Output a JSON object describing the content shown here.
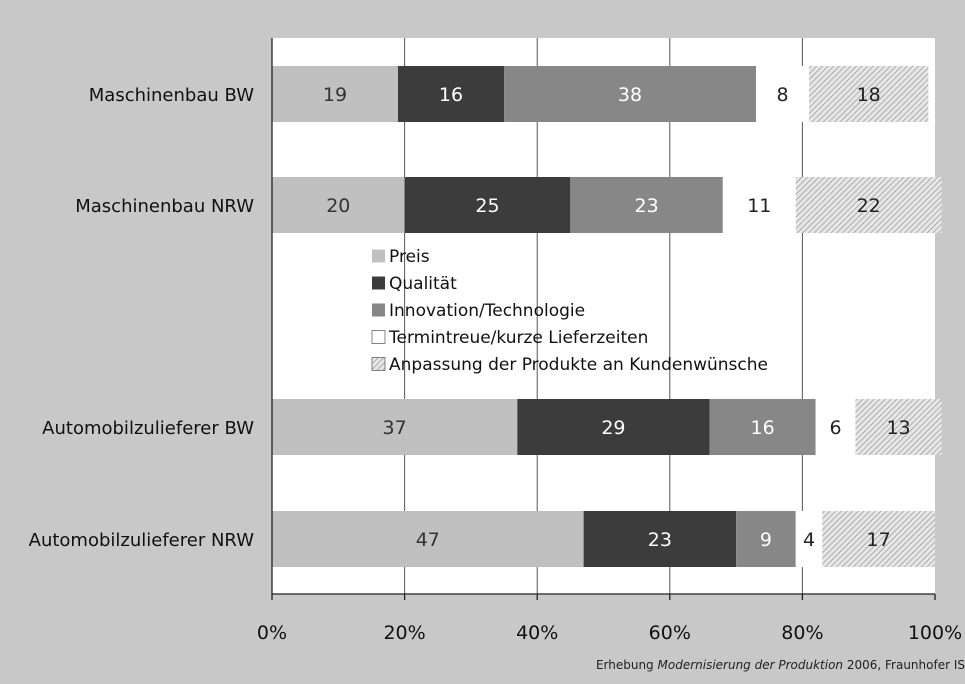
{
  "chart_data": {
    "type": "bar",
    "orientation": "horizontal",
    "stacked": true,
    "percent": true,
    "categories": [
      "Maschinenbau BW",
      "Maschinenbau NRW",
      "Automobilzulieferer BW",
      "Automobilzulieferer NRW"
    ],
    "series": [
      {
        "name": "Preis",
        "values": [
          19,
          20,
          37,
          47
        ],
        "color": "#c0c0c0",
        "label_color": "#333333"
      },
      {
        "name": "Qualität",
        "values": [
          16,
          25,
          29,
          23
        ],
        "color": "#3c3c3c",
        "label_color": "#ffffff"
      },
      {
        "name": "Innovation/Technologie",
        "values": [
          38,
          23,
          16,
          9
        ],
        "color": "#878787",
        "label_color": "#ffffff"
      },
      {
        "name": "Termintreue/kurze Lieferzeiten",
        "values": [
          8,
          11,
          6,
          4
        ],
        "color": "#ffffff",
        "label_color": "#222222"
      },
      {
        "name": "Anpassung der Produkte an Kundenwünsche",
        "values": [
          18,
          22,
          13,
          17
        ],
        "color": "hatch",
        "label_color": "#222222"
      }
    ],
    "xlim": [
      0,
      100
    ],
    "x_ticks": [
      "0%",
      "20%",
      "40%",
      "60%",
      "80%",
      "100%"
    ],
    "grid": true,
    "legend_position": "center"
  },
  "source_note": {
    "prefix": "Erhebung ",
    "title": "Modernisierung der Produktion",
    "suffix": "  2006, Fraunhofer IS"
  }
}
